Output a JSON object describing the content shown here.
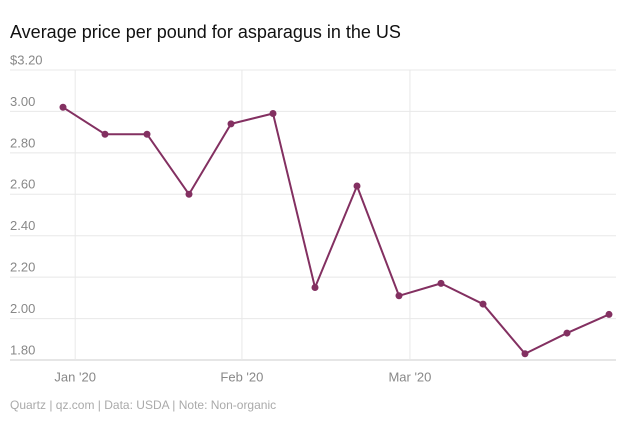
{
  "chart_data": {
    "type": "line",
    "title": "Average price per pound for asparagus in the US",
    "source": "Quartz | qz.com | Data: USDA | Note: Non-organic",
    "categories": [
      null,
      null,
      null,
      null,
      null,
      null,
      null,
      null,
      null,
      null,
      null,
      null,
      null,
      null
    ],
    "series": [
      {
        "name": "Average price per pound",
        "color": "#833061",
        "values": [
          3.02,
          2.89,
          2.89,
          2.6,
          2.94,
          2.99,
          2.15,
          2.64,
          2.11,
          2.17,
          2.07,
          1.83,
          1.93,
          2.02
        ]
      }
    ],
    "xticks": [
      {
        "value": 0.29,
        "label": "Jan '20"
      },
      {
        "value": 4.26,
        "label": "Feb '20"
      },
      {
        "value": 8.26,
        "label": "Mar '20"
      }
    ],
    "ylim": [
      1.8,
      3.2
    ],
    "yticks": [
      {
        "value": 1.8,
        "label": "1.80"
      },
      {
        "value": 2.0,
        "label": "2.00"
      },
      {
        "value": 2.2,
        "label": "2.20"
      },
      {
        "value": 2.4,
        "label": "2.40"
      },
      {
        "value": 2.6,
        "label": "2.60"
      },
      {
        "value": 2.8,
        "label": "2.80"
      },
      {
        "value": 3.0,
        "label": "3.00"
      },
      {
        "value": 3.2,
        "label": "$3.20"
      }
    ],
    "grid": true
  }
}
